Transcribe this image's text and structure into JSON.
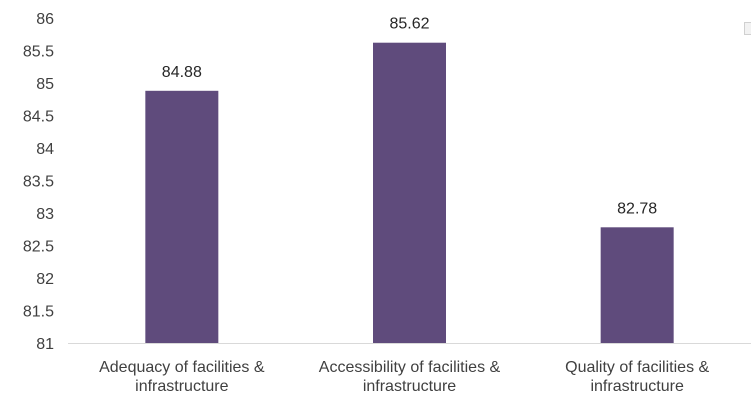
{
  "chart_data": {
    "type": "bar",
    "categories": [
      [
        "Adequacy of facilities &",
        "infrastructure"
      ],
      [
        "Accessibility of facilities &",
        "infrastructure"
      ],
      [
        "Quality of facilities &",
        "infrastructure"
      ]
    ],
    "values": [
      84.88,
      85.62,
      82.78
    ],
    "data_labels": [
      "84.88",
      "85.62",
      "82.78"
    ],
    "ylim": [
      81,
      86
    ],
    "y_ticks": [
      81,
      81.5,
      82,
      82.5,
      83,
      83.5,
      84,
      84.5,
      85,
      85.5,
      86
    ],
    "y_tick_labels": [
      "81",
      "81.5",
      "82",
      "82.5",
      "83",
      "83.5",
      "84",
      "84.5",
      "85",
      "85.5",
      "86"
    ],
    "grid": false,
    "bar_color": "#5f4b7c",
    "axis_color": "#d9d9d9",
    "title": "",
    "xlabel": "",
    "ylabel": ""
  }
}
